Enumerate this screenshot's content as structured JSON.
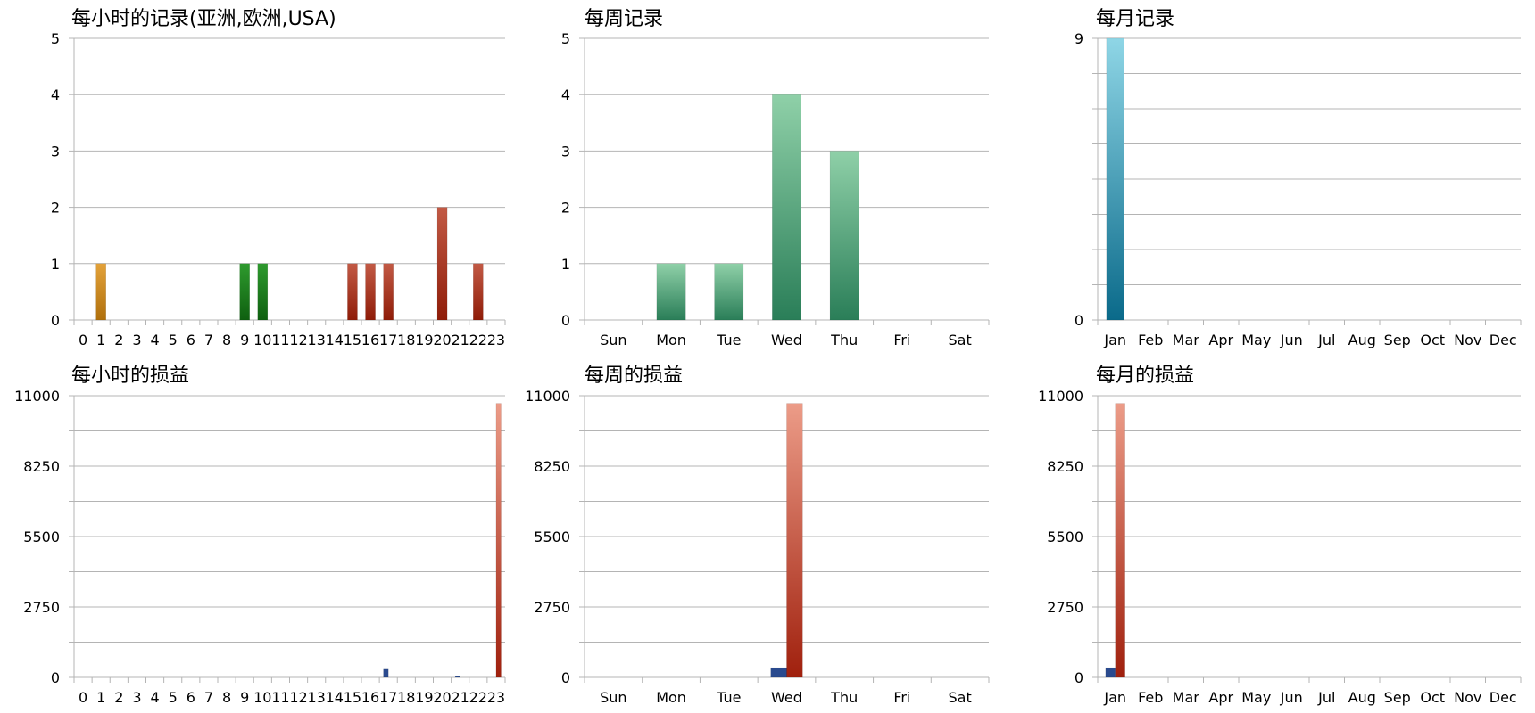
{
  "colors": {
    "gold_bar": [
      "#e3a23a",
      "#b0700c"
    ],
    "green_bar": [
      "#2e9a2e",
      "#0f6010"
    ],
    "red_bar": [
      "#c25a45",
      "#8f1c08"
    ],
    "teal_bar": [
      "#8fd0a8",
      "#2a7e58"
    ],
    "cyan_bar": [
      "#8fd6e6",
      "#0a6a8a"
    ],
    "salmon_bar": [
      "#ec9c88",
      "#a0200d"
    ],
    "blue_bar": "#2a4a8e"
  },
  "chart_data": [
    {
      "type": "bar",
      "title": "每小时的记录(亚洲,欧洲,USA)",
      "categories": [
        "0",
        "1",
        "2",
        "3",
        "4",
        "5",
        "6",
        "7",
        "8",
        "9",
        "10",
        "11",
        "12",
        "13",
        "14",
        "15",
        "16",
        "17",
        "18",
        "19",
        "20",
        "21",
        "22",
        "23"
      ],
      "series": [
        {
          "values": [
            0,
            1,
            0,
            0,
            0,
            0,
            0,
            0,
            0,
            1,
            1,
            0,
            0,
            0,
            0,
            1,
            1,
            1,
            0,
            0,
            2,
            0,
            1,
            0
          ],
          "colors": [
            "gold_bar",
            "gold_bar",
            "gold_bar",
            "gold_bar",
            "gold_bar",
            "gold_bar",
            "gold_bar",
            "gold_bar",
            "green_bar",
            "green_bar",
            "green_bar",
            "green_bar",
            "green_bar",
            "green_bar",
            "green_bar",
            "red_bar",
            "red_bar",
            "red_bar",
            "red_bar",
            "red_bar",
            "red_bar",
            "red_bar",
            "red_bar",
            "red_bar"
          ]
        }
      ],
      "ylim": [
        0,
        5
      ],
      "yticks": [
        "0",
        "1",
        "2",
        "3",
        "4",
        "5"
      ],
      "grid": true
    },
    {
      "type": "bar",
      "title": "每周记录",
      "categories": [
        "Sun",
        "Mon",
        "Tue",
        "Wed",
        "Thu",
        "Fri",
        "Sat"
      ],
      "series": [
        {
          "values": [
            0,
            1,
            1,
            4,
            3,
            0,
            0
          ],
          "color": "teal_bar"
        }
      ],
      "ylim": [
        0,
        5
      ],
      "yticks": [
        "0",
        "1",
        "2",
        "3",
        "4",
        "5"
      ],
      "grid": true
    },
    {
      "type": "bar",
      "title": "每月记录",
      "categories": [
        "Jan",
        "Feb",
        "Mar",
        "Apr",
        "May",
        "Jun",
        "Jul",
        "Aug",
        "Sep",
        "Oct",
        "Nov",
        "Dec"
      ],
      "series": [
        {
          "values": [
            9,
            0,
            0,
            0,
            0,
            0,
            0,
            0,
            0,
            0,
            0,
            0
          ],
          "color": "cyan_bar"
        }
      ],
      "ylim": [
        0,
        9
      ],
      "yticks": [
        "0",
        "9"
      ],
      "grid": true
    },
    {
      "type": "bar",
      "title": "每小时的损益",
      "categories": [
        "0",
        "1",
        "2",
        "3",
        "4",
        "5",
        "6",
        "7",
        "8",
        "9",
        "10",
        "11",
        "12",
        "13",
        "14",
        "15",
        "16",
        "17",
        "18",
        "19",
        "20",
        "21",
        "22",
        "23"
      ],
      "series": [
        {
          "values": [
            0,
            0,
            0,
            0,
            0,
            0,
            0,
            0,
            0,
            0,
            0,
            0,
            0,
            0,
            0,
            0,
            0,
            320,
            0,
            0,
            0,
            60,
            0,
            0
          ],
          "color": "blue_bar"
        },
        {
          "values": [
            0,
            0,
            0,
            0,
            0,
            0,
            0,
            0,
            0,
            0,
            0,
            0,
            0,
            0,
            0,
            0,
            0,
            0,
            0,
            0,
            0,
            0,
            0,
            10700
          ],
          "color": "salmon_bar"
        }
      ],
      "ylim": [
        0,
        11000
      ],
      "yticks": [
        "0",
        "2750",
        "5500",
        "8250",
        "11000"
      ],
      "grid": true
    },
    {
      "type": "bar",
      "title": "每周的损益",
      "categories": [
        "Sun",
        "Mon",
        "Tue",
        "Wed",
        "Thu",
        "Fri",
        "Sat"
      ],
      "series": [
        {
          "values": [
            0,
            0,
            0,
            380,
            0,
            0,
            0
          ],
          "color": "blue_bar"
        },
        {
          "values": [
            0,
            0,
            0,
            10700,
            0,
            0,
            0
          ],
          "color": "salmon_bar"
        }
      ],
      "ylim": [
        0,
        11000
      ],
      "yticks": [
        "0",
        "2750",
        "5500",
        "8250",
        "11000"
      ],
      "grid": true
    },
    {
      "type": "bar",
      "title": "每月的损益",
      "categories": [
        "Jan",
        "Feb",
        "Mar",
        "Apr",
        "May",
        "Jun",
        "Jul",
        "Aug",
        "Sep",
        "Oct",
        "Nov",
        "Dec"
      ],
      "series": [
        {
          "values": [
            380,
            0,
            0,
            0,
            0,
            0,
            0,
            0,
            0,
            0,
            0,
            0
          ],
          "color": "blue_bar"
        },
        {
          "values": [
            10700,
            0,
            0,
            0,
            0,
            0,
            0,
            0,
            0,
            0,
            0,
            0
          ],
          "color": "salmon_bar"
        }
      ],
      "ylim": [
        0,
        11000
      ],
      "yticks": [
        "0",
        "2750",
        "5500",
        "8250",
        "11000"
      ],
      "grid": true
    }
  ]
}
